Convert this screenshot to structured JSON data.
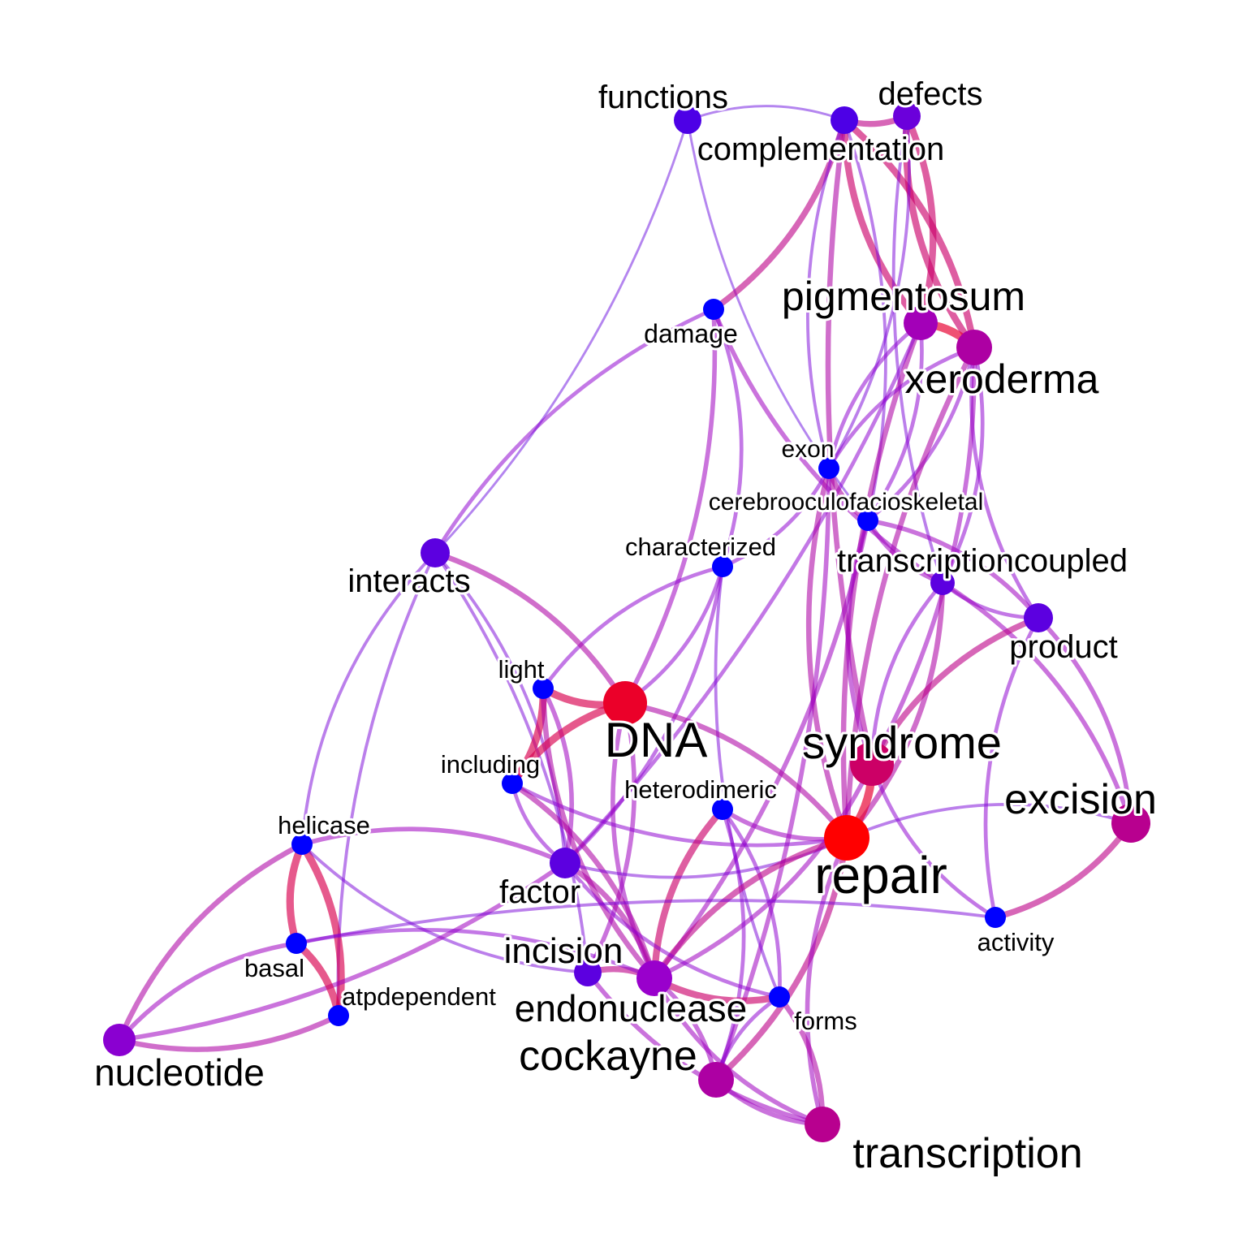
{
  "diagram": {
    "type": "word co-occurrence network",
    "colors": {
      "low": "#0000ff",
      "mid": "#9900cc",
      "high": "#ff0000"
    },
    "nodes": [
      {
        "id": "functions",
        "label": "functions",
        "weight": 0.25
      },
      {
        "id": "complementation",
        "label": "complementation",
        "weight": 0.25
      },
      {
        "id": "defects",
        "label": "defects",
        "weight": 0.35
      },
      {
        "id": "damage",
        "label": "damage",
        "weight": 0.0
      },
      {
        "id": "pigmentosum",
        "label": "pigmentosum",
        "weight": 0.55
      },
      {
        "id": "xeroderma",
        "label": "xeroderma",
        "weight": 0.6
      },
      {
        "id": "exon",
        "label": "exon",
        "weight": 0.0
      },
      {
        "id": "cerebrooculofacioskeletal",
        "label": "cerebrooculofacioskeletal",
        "weight": 0.0
      },
      {
        "id": "characterized",
        "label": "characterized",
        "weight": 0.0
      },
      {
        "id": "transcriptioncoupled",
        "label": "transcriptioncoupled",
        "weight": 0.3
      },
      {
        "id": "interacts",
        "label": "interacts",
        "weight": 0.3
      },
      {
        "id": "product",
        "label": "product",
        "weight": 0.3
      },
      {
        "id": "light",
        "label": "light",
        "weight": 0.0
      },
      {
        "id": "DNA",
        "label": "DNA",
        "weight": 0.9
      },
      {
        "id": "syndrome",
        "label": "syndrome",
        "weight": 0.75
      },
      {
        "id": "including",
        "label": "including",
        "weight": 0.0
      },
      {
        "id": "heterodimeric",
        "label": "heterodimeric",
        "weight": 0.0
      },
      {
        "id": "excision",
        "label": "excision",
        "weight": 0.65
      },
      {
        "id": "helicase",
        "label": "helicase",
        "weight": 0.0
      },
      {
        "id": "repair",
        "label": "repair",
        "weight": 1.0
      },
      {
        "id": "factor",
        "label": "factor",
        "weight": 0.3
      },
      {
        "id": "activity",
        "label": "activity",
        "weight": 0.0
      },
      {
        "id": "incision",
        "label": "incision",
        "weight": 0.3
      },
      {
        "id": "basal",
        "label": "basal",
        "weight": 0.0
      },
      {
        "id": "endonuclease",
        "label": "endonuclease",
        "weight": 0.5
      },
      {
        "id": "atpdependent",
        "label": "atpdependent",
        "weight": 0.0
      },
      {
        "id": "forms",
        "label": "forms",
        "weight": 0.0
      },
      {
        "id": "nucleotide",
        "label": "nucleotide",
        "weight": 0.45
      },
      {
        "id": "cockayne",
        "label": "cockayne",
        "weight": 0.6
      },
      {
        "id": "transcription",
        "label": "transcription",
        "weight": 0.65
      }
    ],
    "edges": [
      {
        "source": "functions",
        "target": "complementation",
        "weight": 0.1
      },
      {
        "source": "complementation",
        "target": "defects",
        "weight": 0.6
      },
      {
        "source": "functions",
        "target": "interacts",
        "weight": 0.1
      },
      {
        "source": "functions",
        "target": "cerebrooculofacioskeletal",
        "weight": 0.1
      },
      {
        "source": "complementation",
        "target": "damage",
        "weight": 0.6
      },
      {
        "source": "complementation",
        "target": "pigmentosum",
        "weight": 0.7
      },
      {
        "source": "complementation",
        "target": "xeroderma",
        "weight": 0.7
      },
      {
        "source": "complementation",
        "target": "exon",
        "weight": 0.2
      },
      {
        "source": "complementation",
        "target": "cerebrooculofacioskeletal",
        "weight": 0.2
      },
      {
        "source": "complementation",
        "target": "syndrome",
        "weight": 0.5
      },
      {
        "source": "defects",
        "target": "pigmentosum",
        "weight": 0.7
      },
      {
        "source": "defects",
        "target": "xeroderma",
        "weight": 0.7
      },
      {
        "source": "defects",
        "target": "exon",
        "weight": 0.2
      },
      {
        "source": "defects",
        "target": "transcriptioncoupled",
        "weight": 0.2
      },
      {
        "source": "pigmentosum",
        "target": "xeroderma",
        "weight": 0.9
      },
      {
        "source": "pigmentosum",
        "target": "exon",
        "weight": 0.3
      },
      {
        "source": "pigmentosum",
        "target": "cerebrooculofacioskeletal",
        "weight": 0.3
      },
      {
        "source": "pigmentosum",
        "target": "repair",
        "weight": 0.5
      },
      {
        "source": "pigmentosum",
        "target": "factor",
        "weight": 0.3
      },
      {
        "source": "xeroderma",
        "target": "exon",
        "weight": 0.3
      },
      {
        "source": "xeroderma",
        "target": "cerebrooculofacioskeletal",
        "weight": 0.3
      },
      {
        "source": "xeroderma",
        "target": "product",
        "weight": 0.3
      },
      {
        "source": "xeroderma",
        "target": "transcriptioncoupled",
        "weight": 0.3
      },
      {
        "source": "xeroderma",
        "target": "repair",
        "weight": 0.5
      },
      {
        "source": "xeroderma",
        "target": "syndrome",
        "weight": 0.4
      },
      {
        "source": "damage",
        "target": "interacts",
        "weight": 0.3
      },
      {
        "source": "damage",
        "target": "characterized",
        "weight": 0.3
      },
      {
        "source": "damage",
        "target": "transcriptioncoupled",
        "weight": 0.4
      },
      {
        "source": "damage",
        "target": "DNA",
        "weight": 0.4
      },
      {
        "source": "exon",
        "target": "cerebrooculofacioskeletal",
        "weight": 0.5
      },
      {
        "source": "exon",
        "target": "characterized",
        "weight": 0.3
      },
      {
        "source": "exon",
        "target": "repair",
        "weight": 0.5
      },
      {
        "source": "exon",
        "target": "cockayne",
        "weight": 0.4
      },
      {
        "source": "cerebrooculofacioskeletal",
        "target": "transcriptioncoupled",
        "weight": 0.4
      },
      {
        "source": "cerebrooculofacioskeletal",
        "target": "product",
        "weight": 0.4
      },
      {
        "source": "cerebrooculofacioskeletal",
        "target": "syndrome",
        "weight": 0.4
      },
      {
        "source": "cerebrooculofacioskeletal",
        "target": "endonuclease",
        "weight": 0.4
      },
      {
        "source": "characterized",
        "target": "light",
        "weight": 0.3
      },
      {
        "source": "characterized",
        "target": "DNA",
        "weight": 0.3
      },
      {
        "source": "characterized",
        "target": "forms",
        "weight": 0.2
      },
      {
        "source": "characterized",
        "target": "factor",
        "weight": 0.3
      },
      {
        "source": "transcriptioncoupled",
        "target": "product",
        "weight": 0.3
      },
      {
        "source": "transcriptioncoupled",
        "target": "repair",
        "weight": 0.5
      },
      {
        "source": "transcriptioncoupled",
        "target": "syndrome",
        "weight": 0.3
      },
      {
        "source": "transcriptioncoupled",
        "target": "excision",
        "weight": 0.4
      },
      {
        "source": "product",
        "target": "syndrome",
        "weight": 0.6
      },
      {
        "source": "product",
        "target": "excision",
        "weight": 0.4
      },
      {
        "source": "product",
        "target": "activity",
        "weight": 0.3
      },
      {
        "source": "interacts",
        "target": "DNA",
        "weight": 0.5
      },
      {
        "source": "interacts",
        "target": "helicase",
        "weight": 0.2
      },
      {
        "source": "interacts",
        "target": "factor",
        "weight": 0.2
      },
      {
        "source": "interacts",
        "target": "atpdependent",
        "weight": 0.2
      },
      {
        "source": "interacts",
        "target": "incision",
        "weight": 0.2
      },
      {
        "source": "light",
        "target": "DNA",
        "weight": 0.8
      },
      {
        "source": "light",
        "target": "including",
        "weight": 0.8
      },
      {
        "source": "light",
        "target": "endonuclease",
        "weight": 0.5
      },
      {
        "source": "light",
        "target": "factor",
        "weight": 0.4
      },
      {
        "source": "DNA",
        "target": "including",
        "weight": 0.8
      },
      {
        "source": "DNA",
        "target": "repair",
        "weight": 0.5
      },
      {
        "source": "DNA",
        "target": "endonuclease",
        "weight": 0.4
      },
      {
        "source": "DNA",
        "target": "incision",
        "weight": 0.4
      },
      {
        "source": "including",
        "target": "repair",
        "weight": 0.3
      },
      {
        "source": "including",
        "target": "endonuclease",
        "weight": 0.5
      },
      {
        "source": "including",
        "target": "factor",
        "weight": 0.3
      },
      {
        "source": "syndrome",
        "target": "repair",
        "weight": 0.9
      },
      {
        "source": "syndrome",
        "target": "activity",
        "weight": 0.3
      },
      {
        "source": "syndrome",
        "target": "endonuclease",
        "weight": 0.4
      },
      {
        "source": "heterodimeric",
        "target": "endonuclease",
        "weight": 0.7
      },
      {
        "source": "heterodimeric",
        "target": "forms",
        "weight": 0.3
      },
      {
        "source": "heterodimeric",
        "target": "repair",
        "weight": 0.4
      },
      {
        "source": "heterodimeric",
        "target": "cockayne",
        "weight": 0.3
      },
      {
        "source": "excision",
        "target": "repair",
        "weight": 0.2
      },
      {
        "source": "excision",
        "target": "activity",
        "weight": 0.6
      },
      {
        "source": "helicase",
        "target": "basal",
        "weight": 0.8
      },
      {
        "source": "helicase",
        "target": "atpdependent",
        "weight": 0.8
      },
      {
        "source": "helicase",
        "target": "nucleotide",
        "weight": 0.5
      },
      {
        "source": "helicase",
        "target": "factor",
        "weight": 0.4
      },
      {
        "source": "helicase",
        "target": "incision",
        "weight": 0.2
      },
      {
        "source": "repair",
        "target": "factor",
        "weight": 0.2
      },
      {
        "source": "repair",
        "target": "endonuclease",
        "weight": 0.6
      },
      {
        "source": "repair",
        "target": "cockayne",
        "weight": 0.6
      },
      {
        "source": "repair",
        "target": "transcription",
        "weight": 0.4
      },
      {
        "source": "factor",
        "target": "endonuclease",
        "weight": 0.5
      },
      {
        "source": "factor",
        "target": "forms",
        "weight": 0.3
      },
      {
        "source": "factor",
        "target": "nucleotide",
        "weight": 0.4
      },
      {
        "source": "activity",
        "target": "basal",
        "weight": 0.2
      },
      {
        "source": "incision",
        "target": "endonuclease",
        "weight": 0.6
      },
      {
        "source": "incision",
        "target": "transcription",
        "weight": 0.4
      },
      {
        "source": "basal",
        "target": "atpdependent",
        "weight": 0.8
      },
      {
        "source": "basal",
        "target": "nucleotide",
        "weight": 0.4
      },
      {
        "source": "basal",
        "target": "endonuclease",
        "weight": 0.3
      },
      {
        "source": "endonuclease",
        "target": "forms",
        "weight": 0.7
      },
      {
        "source": "endonuclease",
        "target": "cockayne",
        "weight": 0.4
      },
      {
        "source": "endonuclease",
        "target": "transcription",
        "weight": 0.4
      },
      {
        "source": "atpdependent",
        "target": "nucleotide",
        "weight": 0.5
      },
      {
        "source": "forms",
        "target": "cockayne",
        "weight": 0.3
      },
      {
        "source": "forms",
        "target": "transcription",
        "weight": 0.5
      },
      {
        "source": "cockayne",
        "target": "transcription",
        "weight": 0.4
      }
    ]
  }
}
